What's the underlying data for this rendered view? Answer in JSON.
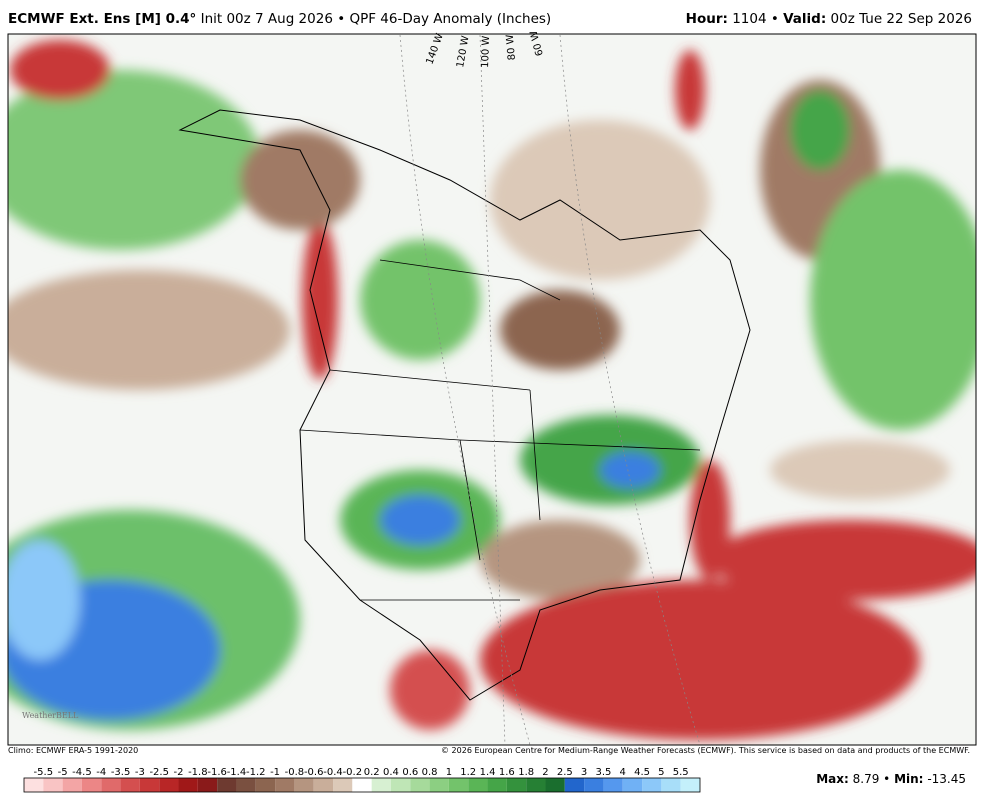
{
  "header": {
    "model": "ECMWF Ext.  Ens [M] 0.4°",
    "init": "Init 00z 7 Aug 2026",
    "product": "QPF 46-Day Anomaly (Inches)",
    "hour_label": "Hour:",
    "hour": "1104",
    "valid_label": "Valid:",
    "valid": "00z Tue 22 Sep 2026"
  },
  "map": {
    "longitudes": [
      "140 W",
      "120 W",
      "100 W",
      "80 W",
      "60 W"
    ],
    "watermark": "WeatherBELL"
  },
  "footer": {
    "climo": "Climo: ECMWF ERA-5 1991-2020",
    "copyright": "© 2026 European Centre for Medium-Range Weather Forecasts (ECMWF). This service is based on data and products of the ECMWF."
  },
  "colorbar": {
    "labels": [
      "-5.5",
      "-5",
      "-4.5",
      "-4",
      "-3.5",
      "-3",
      "-2.5",
      "-2",
      "-1.8",
      "-1.6",
      "-1.4",
      "-1.2",
      "-1",
      "-0.8",
      "-0.6",
      "-0.4",
      "-0.2",
      "0.2",
      "0.4",
      "0.6",
      "0.8",
      "1",
      "1.2",
      "1.4",
      "1.6",
      "1.8",
      "2",
      "2.5",
      "3",
      "3.5",
      "4",
      "4.5",
      "5",
      "5.5"
    ],
    "colors": [
      "#fde0e0",
      "#f9c4c4",
      "#f3a5a5",
      "#ec8686",
      "#e06a6a",
      "#d44f4f",
      "#c83838",
      "#b82626",
      "#a01818",
      "#8a1a1a",
      "#6e3a30",
      "#7a5040",
      "#8c6550",
      "#a07a65",
      "#b59580",
      "#c9ae9a",
      "#dcc9b8",
      "#ffffff",
      "#d7f0d2",
      "#bfe6b6",
      "#a6da9b",
      "#8ccf82",
      "#73c36b",
      "#5ab556",
      "#45a548",
      "#34923d",
      "#268034",
      "#1a6e2e",
      "#2266cc",
      "#3a7fe0",
      "#5598ee",
      "#70b1f5",
      "#8cc8f9",
      "#a8def9",
      "#c4f0fb"
    ]
  },
  "stats": {
    "max_label": "Max:",
    "max": "8.79",
    "min_label": "Min:",
    "min": "-13.45"
  }
}
